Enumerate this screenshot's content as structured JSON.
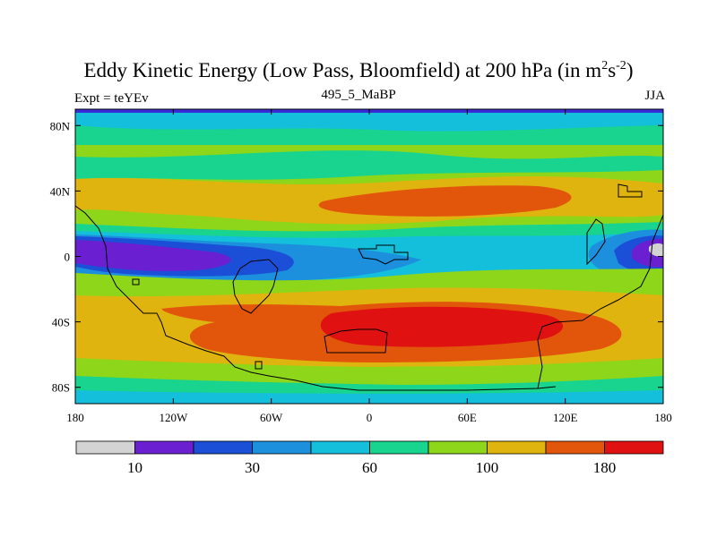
{
  "title_main": "Eddy Kinetic Energy (Low Pass, Bloomfield) at 200 hPa (in m",
  "title_sup1": "2",
  "title_mid": "s",
  "title_sup2": "-2",
  "title_end": ")",
  "left_label": "Expt = teYEv",
  "center_label": "495_5_MaBP",
  "right_label": "JJA",
  "colors": {
    "levels": [
      "#d3d3d3",
      "#6a1fd1",
      "#1b4fd8",
      "#1c8fdd",
      "#14bfdb",
      "#18d48e",
      "#8ed61a",
      "#e0b40f",
      "#e2560c",
      "#e01111"
    ],
    "coast": "#000000",
    "top_bar": "#3a2bd9"
  },
  "map": {
    "x_ticks": [
      "180",
      "120W",
      "60W",
      "0",
      "60E",
      "120E",
      "180"
    ],
    "y_ticks": [
      "80N",
      "40N",
      "0",
      "40S",
      "80S"
    ]
  },
  "colorbar": {
    "labels": [
      "10",
      "30",
      "60",
      "100",
      "180"
    ]
  }
}
